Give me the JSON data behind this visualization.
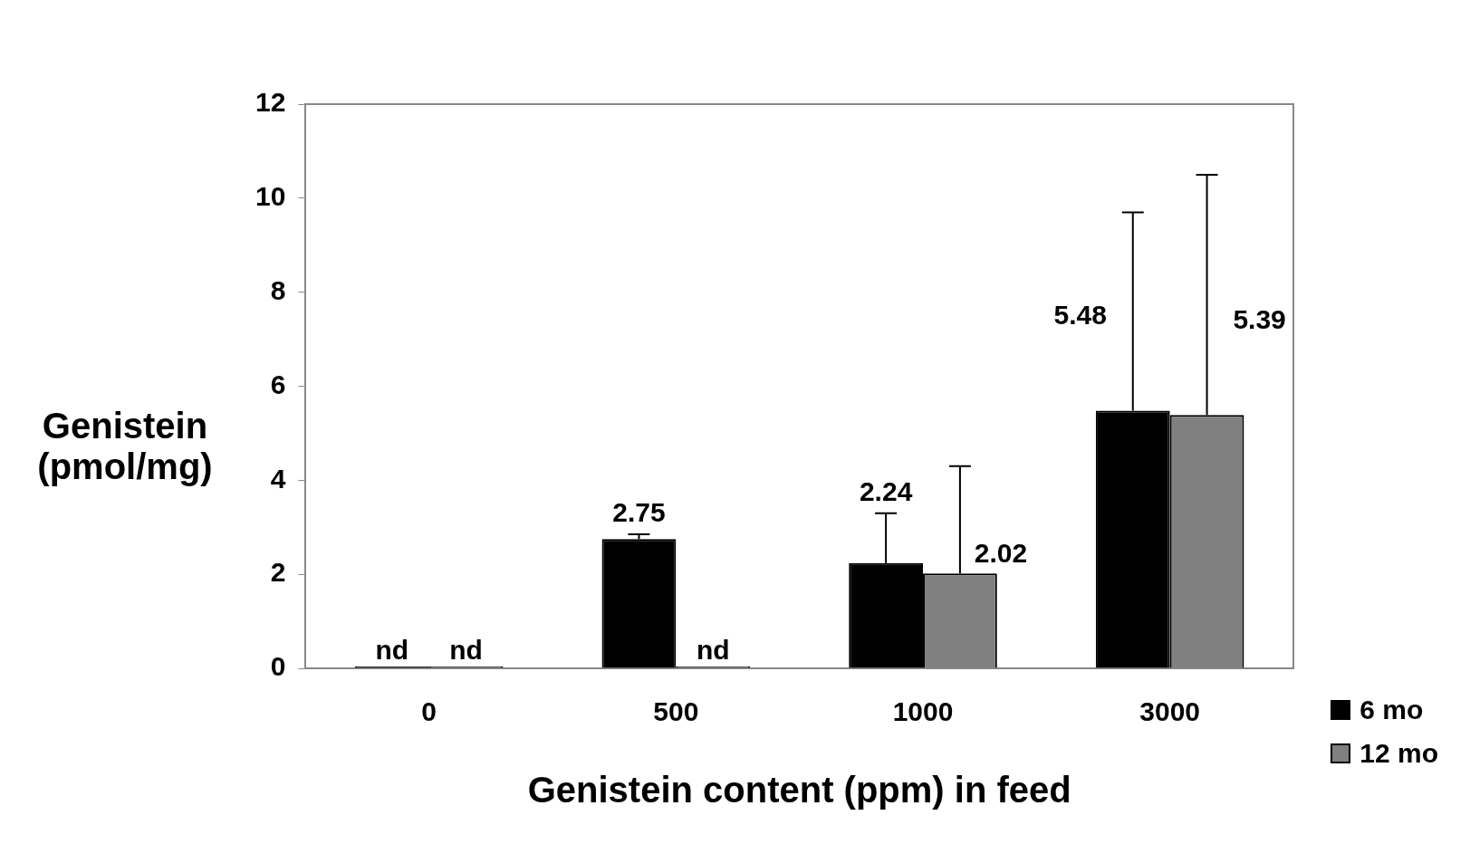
{
  "chart_data": {
    "type": "bar",
    "xlabel": "Genistein content (ppm) in feed",
    "ylabel": "Genistein (pmol/mg)",
    "categories": [
      "0",
      "500",
      "1000",
      "3000"
    ],
    "series": [
      {
        "name": "6 mo",
        "color": "#000000",
        "values": [
          0,
          2.75,
          2.24,
          5.48
        ],
        "errors": [
          null,
          0.1,
          1.06,
          4.22
        ],
        "value_labels": [
          "nd",
          "2.75",
          "2.24",
          "5.48"
        ]
      },
      {
        "name": "12 mo",
        "color": "#808080",
        "values": [
          0,
          0,
          2.02,
          5.39
        ],
        "errors": [
          null,
          null,
          2.28,
          5.11
        ],
        "value_labels": [
          "nd",
          "nd",
          "2.02",
          "5.39"
        ]
      }
    ],
    "ylim": [
      0,
      12
    ],
    "yticks": [
      0,
      2,
      4,
      6,
      8,
      10,
      12
    ],
    "grid": false,
    "legend": "bottom right"
  }
}
